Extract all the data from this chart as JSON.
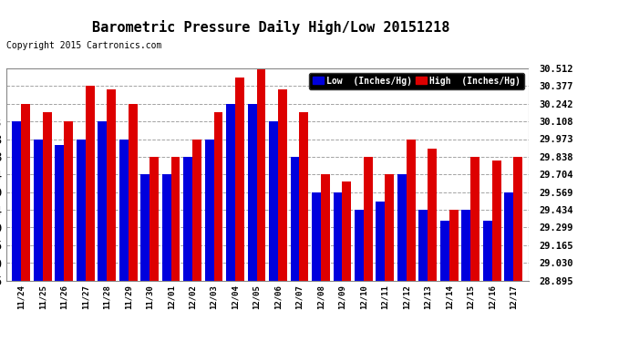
{
  "title": "Barometric Pressure Daily High/Low 20151218",
  "copyright": "Copyright 2015 Cartronics.com",
  "ylabel_right_ticks": [
    28.895,
    29.03,
    29.165,
    29.299,
    29.434,
    29.569,
    29.704,
    29.838,
    29.973,
    30.108,
    30.242,
    30.377,
    30.512
  ],
  "ylim": [
    28.895,
    30.512
  ],
  "dates": [
    "11/24",
    "11/25",
    "11/26",
    "11/27",
    "11/28",
    "11/29",
    "11/30",
    "12/01",
    "12/02",
    "12/03",
    "12/04",
    "12/05",
    "12/06",
    "12/07",
    "12/08",
    "12/09",
    "12/10",
    "12/11",
    "12/12",
    "12/13",
    "12/14",
    "12/15",
    "12/16",
    "12/17"
  ],
  "low_values": [
    30.108,
    29.973,
    29.93,
    29.973,
    30.108,
    29.973,
    29.704,
    29.704,
    29.838,
    29.973,
    30.242,
    30.242,
    30.108,
    29.838,
    29.569,
    29.569,
    29.434,
    29.5,
    29.704,
    29.434,
    29.35,
    29.434,
    29.35,
    29.569
  ],
  "high_values": [
    30.242,
    30.175,
    30.108,
    30.377,
    30.35,
    30.242,
    29.838,
    29.838,
    29.973,
    30.175,
    30.445,
    30.512,
    30.35,
    30.175,
    29.704,
    29.65,
    29.838,
    29.704,
    29.973,
    29.9,
    29.434,
    29.838,
    29.81,
    29.838
  ],
  "low_color": "#0000dd",
  "high_color": "#dd0000",
  "bg_color": "#ffffff",
  "grid_color": "#999999",
  "title_fontsize": 11,
  "copyright_fontsize": 7,
  "legend_low_label": "Low  (Inches/Hg)",
  "legend_high_label": "High  (Inches/Hg)"
}
